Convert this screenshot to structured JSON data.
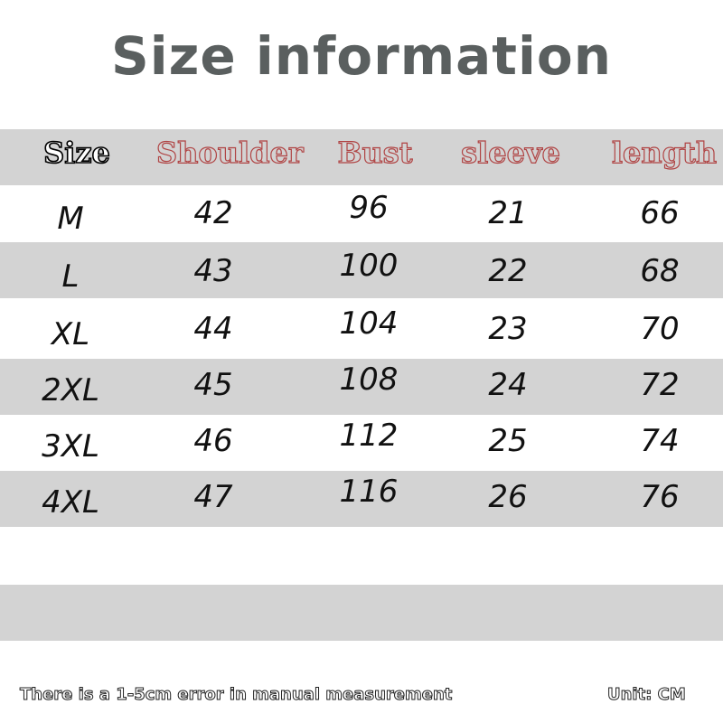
{
  "title": "Size information",
  "headers": [
    "Size",
    "Shoulder",
    "Bust",
    "sleeve",
    "length"
  ],
  "rows": [
    [
      "M",
      "42",
      "96",
      "21",
      "66"
    ],
    [
      "L",
      "43",
      "100",
      "22",
      "68"
    ],
    [
      "XL",
      "44",
      "104",
      "23",
      "70"
    ],
    [
      "2XL",
      "45",
      "108",
      "24",
      "72"
    ],
    [
      "3XL",
      "46",
      "112",
      "25",
      "74"
    ],
    [
      "4XL",
      "47",
      "116",
      "26",
      "76"
    ]
  ],
  "footer": {
    "note": "There is a 1-5cm error in manual measurement",
    "unit": "Unit: CM"
  },
  "colors": {
    "header_text_outline": "#b04444",
    "band_gray": "#d3d3d3",
    "title": "#5a5f5f"
  }
}
